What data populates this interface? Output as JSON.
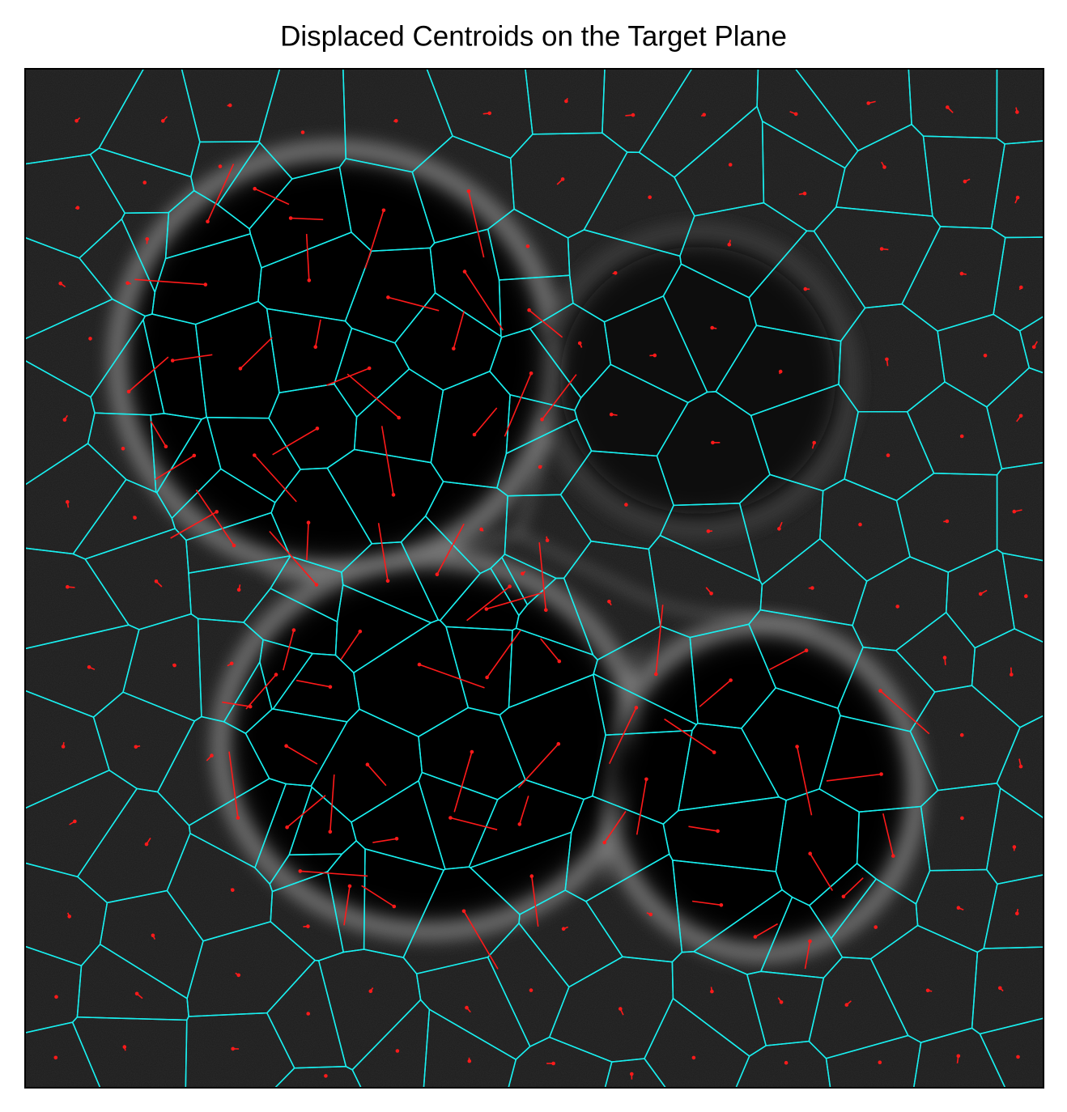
{
  "chart_data": {
    "type": "vector-field",
    "title": "Displaced Centroids on the Target Plane"
  }
}
